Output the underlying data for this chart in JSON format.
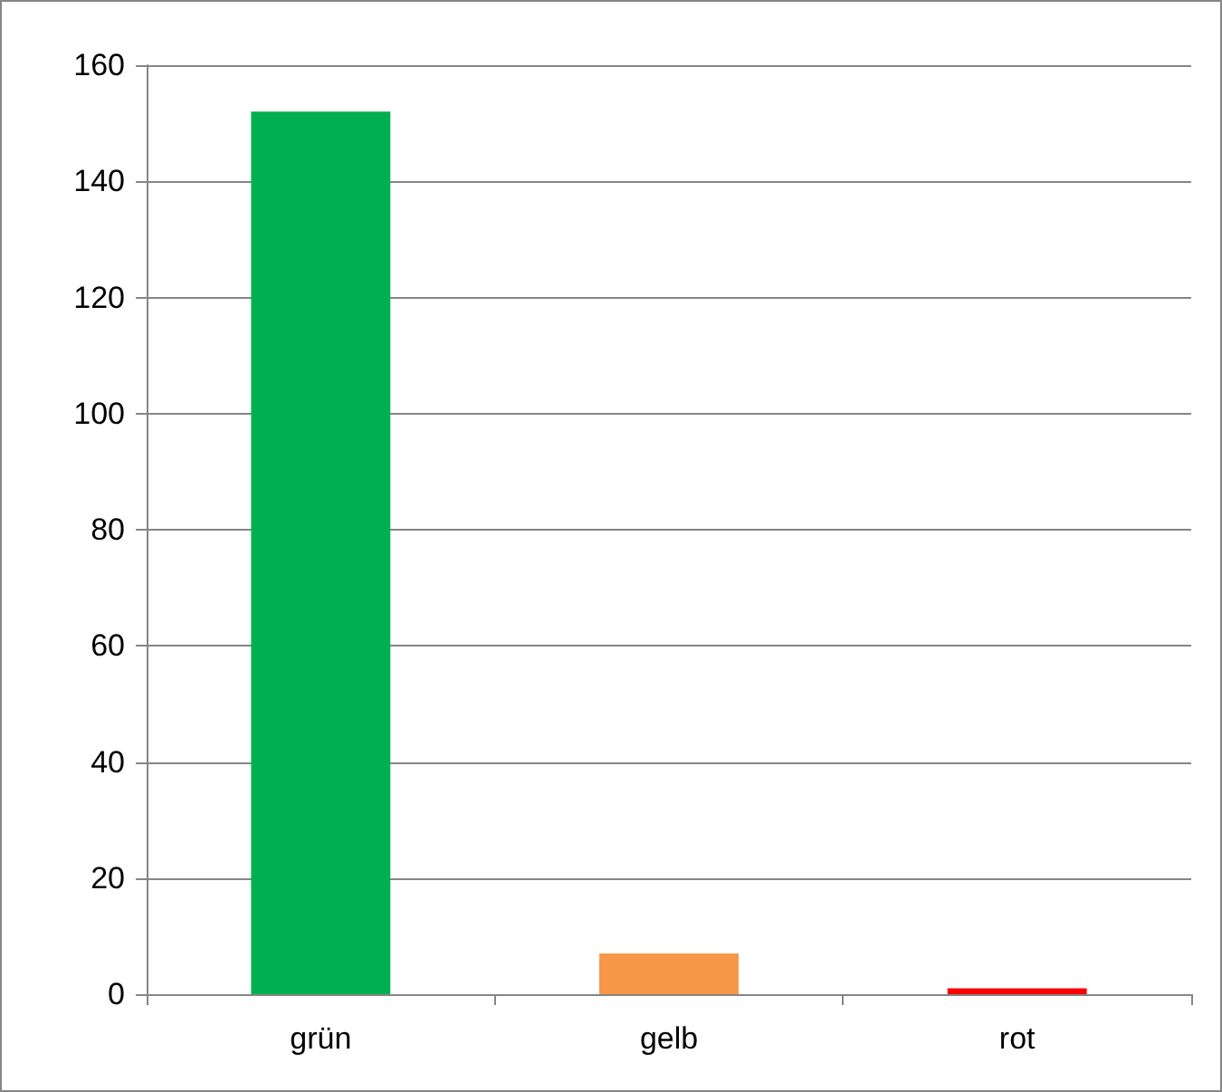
{
  "chart_data": {
    "type": "bar",
    "categories": [
      "grün",
      "gelb",
      "rot"
    ],
    "values": [
      152,
      7,
      1
    ],
    "colors": [
      "#00b050",
      "#f79646",
      "#ff0000"
    ],
    "ylim": [
      0,
      160
    ],
    "yticks": [
      0,
      20,
      40,
      60,
      80,
      100,
      120,
      140,
      160
    ],
    "grid": "y"
  }
}
